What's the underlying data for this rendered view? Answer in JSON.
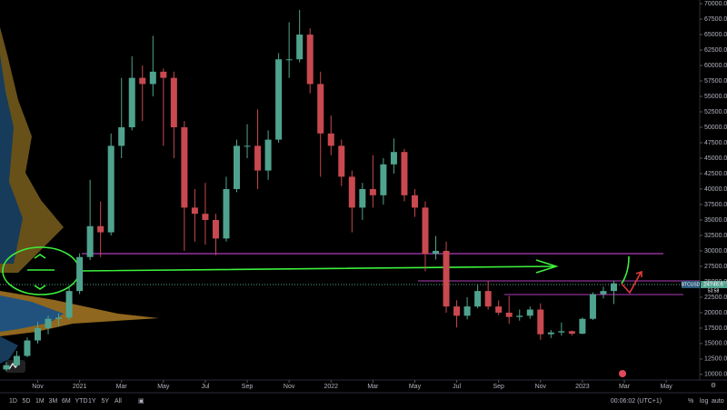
{
  "chart_data": {
    "type": "candlestick",
    "symbol": "BTCUSD",
    "last_price": 24746.6,
    "countdown": "53:58",
    "x": [
      -1.5,
      -1,
      -0.5,
      0,
      0.5,
      1,
      1.5,
      2,
      2.5,
      3,
      3.5,
      4,
      4.5,
      5,
      5.5,
      6,
      6.5,
      7,
      7.5,
      8,
      8.5,
      9,
      9.5,
      10,
      10.5,
      11,
      11.5,
      12,
      12.5,
      13,
      13.5,
      14,
      14.5,
      15,
      15.5,
      16,
      16.5,
      17,
      17.5,
      18,
      18.5,
      19,
      19.5,
      20,
      20.5,
      21,
      21.5,
      22,
      22.5,
      23,
      23.5,
      24,
      24.5,
      25,
      25.5,
      26,
      26.5,
      27,
      27.5
    ],
    "open": [
      10800,
      11500,
      13000,
      15500,
      17500,
      19000,
      19200,
      23500,
      29000,
      34000,
      33000,
      47000,
      50000,
      58000,
      57000,
      59000,
      58000,
      50000,
      37000,
      36000,
      35000,
      32000,
      40000,
      47000,
      47000,
      43000,
      48000,
      61000,
      61000,
      65000,
      57000,
      49000,
      47000,
      42000,
      37000,
      40000,
      39000,
      44000,
      46000,
      39000,
      37000,
      29500,
      30000,
      21000,
      19500,
      21000,
      23500,
      21000,
      20000,
      19300,
      19500,
      20500,
      16500,
      16800,
      17000,
      16600,
      19000,
      23000,
      23500
    ],
    "high": [
      12000,
      13800,
      16000,
      18500,
      19500,
      19900,
      24200,
      29600,
      41500,
      38000,
      49000,
      58000,
      61500,
      60000,
      64800,
      59500,
      59000,
      51000,
      40000,
      41000,
      36000,
      42000,
      48000,
      50500,
      52900,
      49500,
      62000,
      67000,
      69000,
      66000,
      59000,
      51900,
      48000,
      43000,
      41000,
      45500,
      45000,
      48200,
      46500,
      40000,
      38000,
      32400,
      31500,
      22000,
      22500,
      24500,
      25200,
      22000,
      22700,
      20500,
      21000,
      21500,
      17200,
      18400,
      17100,
      19200,
      23300,
      24200,
      25200
    ],
    "low": [
      10500,
      11200,
      12800,
      15000,
      16500,
      17800,
      18800,
      23000,
      28500,
      29000,
      32500,
      45000,
      49500,
      51000,
      55000,
      47000,
      45000,
      30000,
      31500,
      31000,
      29300,
      31500,
      39500,
      45000,
      40000,
      41500,
      47500,
      58000,
      60500,
      55500,
      42000,
      45500,
      40500,
      33000,
      35000,
      37000,
      37500,
      42500,
      38000,
      35500,
      26700,
      28600,
      20000,
      17600,
      18900,
      20700,
      20500,
      19600,
      18200,
      18700,
      19000,
      15600,
      15900,
      16300,
      16300,
      16500,
      18800,
      22300,
      21400
    ],
    "close": [
      11500,
      13000,
      15500,
      17500,
      19000,
      19200,
      23500,
      29000,
      34000,
      33000,
      47000,
      50000,
      58000,
      57000,
      59000,
      58000,
      50000,
      37000,
      36000,
      35000,
      32000,
      40000,
      47000,
      47000,
      43000,
      48000,
      61000,
      61000,
      65000,
      57000,
      49000,
      47000,
      42000,
      37000,
      40000,
      39000,
      44000,
      46000,
      39000,
      37000,
      29500,
      30000,
      21000,
      19500,
      21000,
      23500,
      21000,
      20000,
      19300,
      19500,
      20500,
      16500,
      16800,
      17000,
      16600,
      19000,
      23000,
      23500,
      24746.6
    ],
    "up_color": "#4fa38e",
    "down_color": "#c8494f",
    "xlim": [
      -1.8,
      31.6
    ],
    "xticks": [
      {
        "value": 0,
        "label": "Nov"
      },
      {
        "value": 2,
        "label": "2021"
      },
      {
        "value": 4,
        "label": "Mar"
      },
      {
        "value": 6,
        "label": "May"
      },
      {
        "value": 8,
        "label": "Jul"
      },
      {
        "value": 10,
        "label": "Sep"
      },
      {
        "value": 12,
        "label": "Nov"
      },
      {
        "value": 14,
        "label": "2022"
      },
      {
        "value": 16,
        "label": "Mar"
      },
      {
        "value": 18,
        "label": "May"
      },
      {
        "value": 20,
        "label": "Jul"
      },
      {
        "value": 22,
        "label": "Sep"
      },
      {
        "value": 24,
        "label": "Nov"
      },
      {
        "value": 26,
        "label": "2023"
      },
      {
        "value": 28,
        "label": "Mar"
      },
      {
        "value": 30,
        "label": "May"
      }
    ],
    "ylim": [
      9100,
      70600
    ],
    "yticks": [
      {
        "value": 10000,
        "label": "10000.0"
      },
      {
        "value": 12500,
        "label": "12500.0"
      },
      {
        "value": 15000,
        "label": "15000.0"
      },
      {
        "value": 17500,
        "label": "17500.0"
      },
      {
        "value": 20000,
        "label": "20000.0"
      },
      {
        "value": 22500,
        "label": "22500.0"
      },
      {
        "value": 25000,
        "label": "25000.0"
      },
      {
        "value": 27500,
        "label": "27500.0"
      },
      {
        "value": 30000,
        "label": "30000.0"
      },
      {
        "value": 32500,
        "label": "32500.0"
      },
      {
        "value": 35000,
        "label": "35000.0"
      },
      {
        "value": 37500,
        "label": "37500.0"
      },
      {
        "value": 40000,
        "label": "40000.0"
      },
      {
        "value": 42500,
        "label": "42500.0"
      },
      {
        "value": 45000,
        "label": "45000.0"
      },
      {
        "value": 47500,
        "label": "47500.0"
      },
      {
        "value": 50000,
        "label": "50000.0"
      },
      {
        "value": 52500,
        "label": "52500.0"
      },
      {
        "value": 55000,
        "label": "55000.0"
      },
      {
        "value": 57500,
        "label": "57500.0"
      },
      {
        "value": 60000,
        "label": "60000.0"
      },
      {
        "value": 62500,
        "label": "62500.0"
      },
      {
        "value": 65000,
        "label": "65000.0"
      },
      {
        "value": 67500,
        "label": "67500.0"
      },
      {
        "value": 70000,
        "label": "70000.0"
      }
    ]
  },
  "toolbar": {
    "ranges": [
      "1D",
      "5D",
      "1M",
      "3M",
      "6M",
      "YTD",
      "1Y",
      "5Y",
      "All"
    ],
    "time": "00:06:02 (UTC+1)",
    "options": [
      "%",
      "log",
      "auto"
    ]
  }
}
